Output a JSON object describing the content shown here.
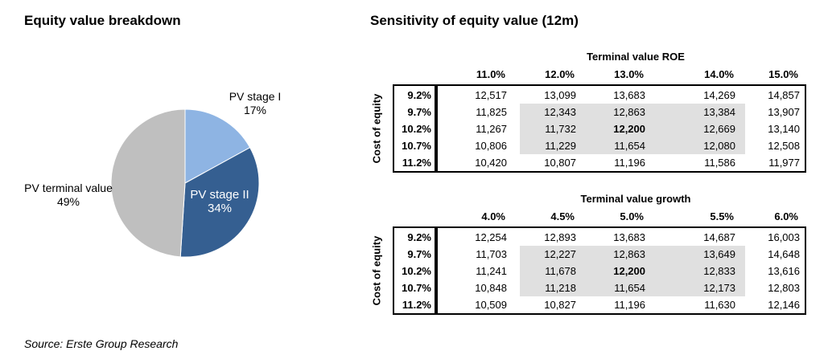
{
  "left": {
    "title": "Equity value breakdown",
    "source": "Source: Erste Group Research"
  },
  "chart_data": [
    {
      "type": "pie",
      "title": "Equity value breakdown",
      "slices": [
        {
          "label": "PV stage I",
          "value": 17,
          "display": "17%",
          "color": "#8eb4e3"
        },
        {
          "label": "PV stage II",
          "value": 34,
          "display": "34%",
          "color": "#355f91"
        },
        {
          "label": "PV terminal value",
          "value": 49,
          "display": "PV terminal value 49%",
          "color": "#bfbfbf"
        }
      ]
    },
    {
      "type": "table",
      "title": "Sensitivity of equity value (12m)",
      "column_param": "Terminal value ROE",
      "row_param": "Cost of equity",
      "columns": [
        "11.0%",
        "12.0%",
        "13.0%",
        "14.0%",
        "15.0%"
      ],
      "rows": [
        "9.2%",
        "9.7%",
        "10.2%",
        "10.7%",
        "11.2%"
      ],
      "values": [
        [
          "12,517",
          "13,099",
          "13,683",
          "14,269",
          "14,857"
        ],
        [
          "11,825",
          "12,343",
          "12,863",
          "13,384",
          "13,907"
        ],
        [
          "11,267",
          "11,732",
          "12,200",
          "12,669",
          "13,140"
        ],
        [
          "10,806",
          "11,229",
          "11,654",
          "12,080",
          "12,508"
        ],
        [
          "10,420",
          "10,807",
          "11,196",
          "11,586",
          "11,977"
        ]
      ]
    },
    {
      "type": "table",
      "column_param": "Terminal value growth",
      "row_param": "Cost of equity",
      "columns": [
        "4.0%",
        "4.5%",
        "5.0%",
        "5.5%",
        "6.0%"
      ],
      "rows": [
        "9.2%",
        "9.7%",
        "10.2%",
        "10.7%",
        "11.2%"
      ],
      "values": [
        [
          "12,254",
          "12,893",
          "13,683",
          "14,687",
          "16,003"
        ],
        [
          "11,703",
          "12,227",
          "12,863",
          "13,649",
          "14,648"
        ],
        [
          "11,241",
          "11,678",
          "12,200",
          "12,833",
          "13,616"
        ],
        [
          "10,848",
          "11,218",
          "11,654",
          "12,173",
          "12,803"
        ],
        [
          "10,509",
          "10,827",
          "11,196",
          "11,630",
          "12,146"
        ]
      ]
    }
  ]
}
